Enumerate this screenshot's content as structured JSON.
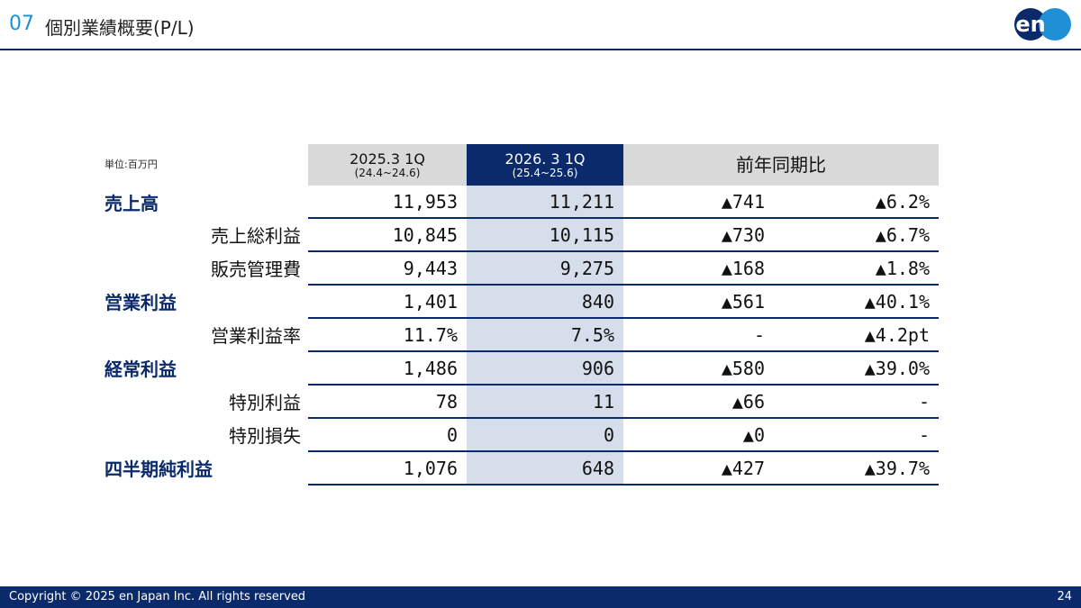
{
  "header": {
    "number": "07",
    "title": "個別業績概要(P/L)"
  },
  "logo": {
    "text": "en"
  },
  "unit": "単位:百万円",
  "columns": {
    "prev": {
      "label": "2025.3 1Q",
      "range": "(24.4~24.6)"
    },
    "cur": {
      "label": "2026. 3 1Q",
      "range": "(25.4~25.6)"
    },
    "yoy": {
      "label": "前年同期比"
    }
  },
  "rows": [
    {
      "label": "売上高",
      "prev": "11,953",
      "cur": "11,211",
      "diff": "▲741",
      "pct": "▲6.2%"
    },
    {
      "label": "売上総利益",
      "prev": "10,845",
      "cur": "10,115",
      "diff": "▲730",
      "pct": "▲6.7%"
    },
    {
      "label": "販売管理費",
      "prev": "9,443",
      "cur": "9,275",
      "diff": "▲168",
      "pct": "▲1.8%"
    },
    {
      "label": "営業利益",
      "prev": "1,401",
      "cur": "840",
      "diff": "▲561",
      "pct": "▲40.1%"
    },
    {
      "label": "営業利益率",
      "prev": "11.7%",
      "cur": "7.5%",
      "diff": "-",
      "pct": "▲4.2pt"
    },
    {
      "label": "経常利益",
      "prev": "1,486",
      "cur": "906",
      "diff": "▲580",
      "pct": "▲39.0%"
    },
    {
      "label": "特別利益",
      "prev": "78",
      "cur": "11",
      "diff": "▲66",
      "pct": "-"
    },
    {
      "label": "特別損失",
      "prev": "0",
      "cur": "0",
      "diff": "▲0",
      "pct": "-"
    },
    {
      "label": "四半期純利益",
      "prev": "1,076",
      "cur": "648",
      "diff": "▲427",
      "pct": "▲39.7%"
    }
  ],
  "footer": {
    "copyright": "Copyright © 2025 en Japan Inc. All rights reserved",
    "page": "24"
  },
  "colors": {
    "navy": "#0b2a6b",
    "accent": "#1f8fd6",
    "gray": "#d9d9d9",
    "lightblue": "#d6deeb"
  }
}
